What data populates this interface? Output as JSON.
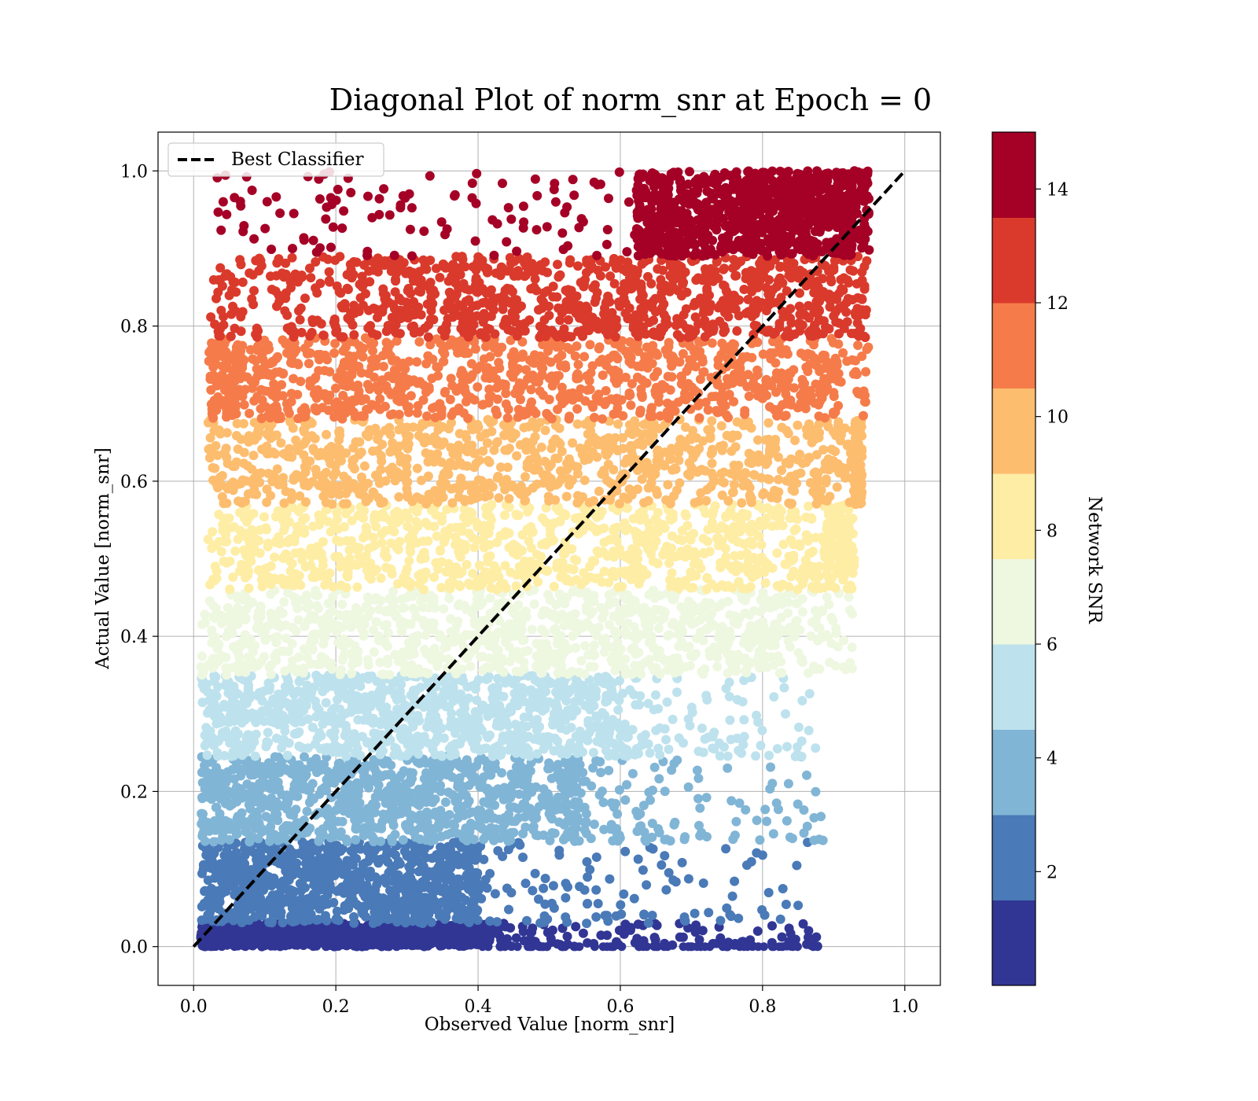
{
  "chart_data": {
    "type": "scatter",
    "title": "Diagonal Plot of norm_snr at Epoch = 0",
    "xlabel": "Observed Value [norm_snr]",
    "ylabel": "Actual Value [norm_snr]",
    "xlim": [
      -0.05,
      1.05
    ],
    "ylim": [
      -0.05,
      1.05
    ],
    "xticks": [
      0.0,
      0.2,
      0.4,
      0.6,
      0.8,
      1.0
    ],
    "xtick_labels": [
      "0.0",
      "0.2",
      "0.4",
      "0.6",
      "0.8",
      "1.0"
    ],
    "yticks": [
      0.0,
      0.2,
      0.4,
      0.6,
      0.8,
      1.0
    ],
    "ytick_labels": [
      "0.0",
      "0.2",
      "0.4",
      "0.6",
      "0.8",
      "1.0"
    ],
    "grid": true,
    "legend": {
      "placement": "top-left",
      "entries": [
        {
          "label": "Best Classifier",
          "style": "dashed",
          "color": "#000000"
        }
      ]
    },
    "reference_line": {
      "name": "Best Classifier",
      "x": [
        0.0,
        1.0
      ],
      "y": [
        0.0,
        1.0
      ],
      "style": "dashed",
      "color": "#000000"
    },
    "colorbar": {
      "label": "Network SNR",
      "range": [
        0,
        15
      ],
      "ticks": [
        2,
        4,
        6,
        8,
        10,
        12,
        14
      ],
      "tick_labels": [
        "2",
        "4",
        "6",
        "8",
        "10",
        "12",
        "14"
      ],
      "colors": [
        "#313695",
        "#4575b4",
        "#74add1",
        "#abd9e9",
        "#e0f3f8",
        "#fee090",
        "#fdae61",
        "#f46d43",
        "#d73027",
        "#a50026"
      ],
      "segment_colors": [
        "#313695",
        "#4a7ab7",
        "#81b5d6",
        "#bde2ed",
        "#eef7e0",
        "#feeda4",
        "#fdbd6f",
        "#f57c4a",
        "#da3a2c",
        "#a50026"
      ]
    },
    "bands": [
      {
        "snr_range": [
          0.0,
          1.5
        ],
        "y_range": [
          0.0,
          0.03
        ],
        "x_core": [
          0.01,
          0.42
        ],
        "x_tail": 0.88
      },
      {
        "snr_range": [
          1.5,
          3.0
        ],
        "y_range": [
          0.03,
          0.135
        ],
        "x_core": [
          0.01,
          0.4
        ],
        "x_tail": 0.87
      },
      {
        "snr_range": [
          3.0,
          4.5
        ],
        "y_range": [
          0.135,
          0.245
        ],
        "x_core": [
          0.01,
          0.55
        ],
        "x_tail": 0.89
      },
      {
        "snr_range": [
          4.5,
          6.0
        ],
        "y_range": [
          0.245,
          0.35
        ],
        "x_core": [
          0.01,
          0.6
        ],
        "x_tail": 0.88
      },
      {
        "snr_range": [
          6.0,
          7.5
        ],
        "y_range": [
          0.35,
          0.46
        ],
        "x_core": [
          0.01,
          0.8
        ],
        "x_tail": 0.93
      },
      {
        "snr_range": [
          7.5,
          9.0
        ],
        "y_range": [
          0.46,
          0.57
        ],
        "x_core": [
          0.02,
          0.89
        ],
        "x_tail": 0.93
      },
      {
        "snr_range": [
          9.0,
          10.5
        ],
        "y_range": [
          0.57,
          0.68
        ],
        "x_core": [
          0.02,
          0.93
        ],
        "x_tail": 0.94
      },
      {
        "snr_range": [
          10.5,
          12.0
        ],
        "y_range": [
          0.68,
          0.785
        ],
        "x_core": [
          0.07,
          0.95
        ],
        "x_tail": 0.95
      },
      {
        "snr_range": [
          12.0,
          13.5
        ],
        "y_range": [
          0.785,
          0.89
        ],
        "x_core": [
          0.2,
          0.95
        ],
        "x_tail": 0.96
      },
      {
        "snr_range": [
          13.5,
          15.0
        ],
        "y_range": [
          0.89,
          1.0
        ],
        "x_core": [
          0.62,
          0.95
        ],
        "x_tail": 0.97
      }
    ]
  }
}
